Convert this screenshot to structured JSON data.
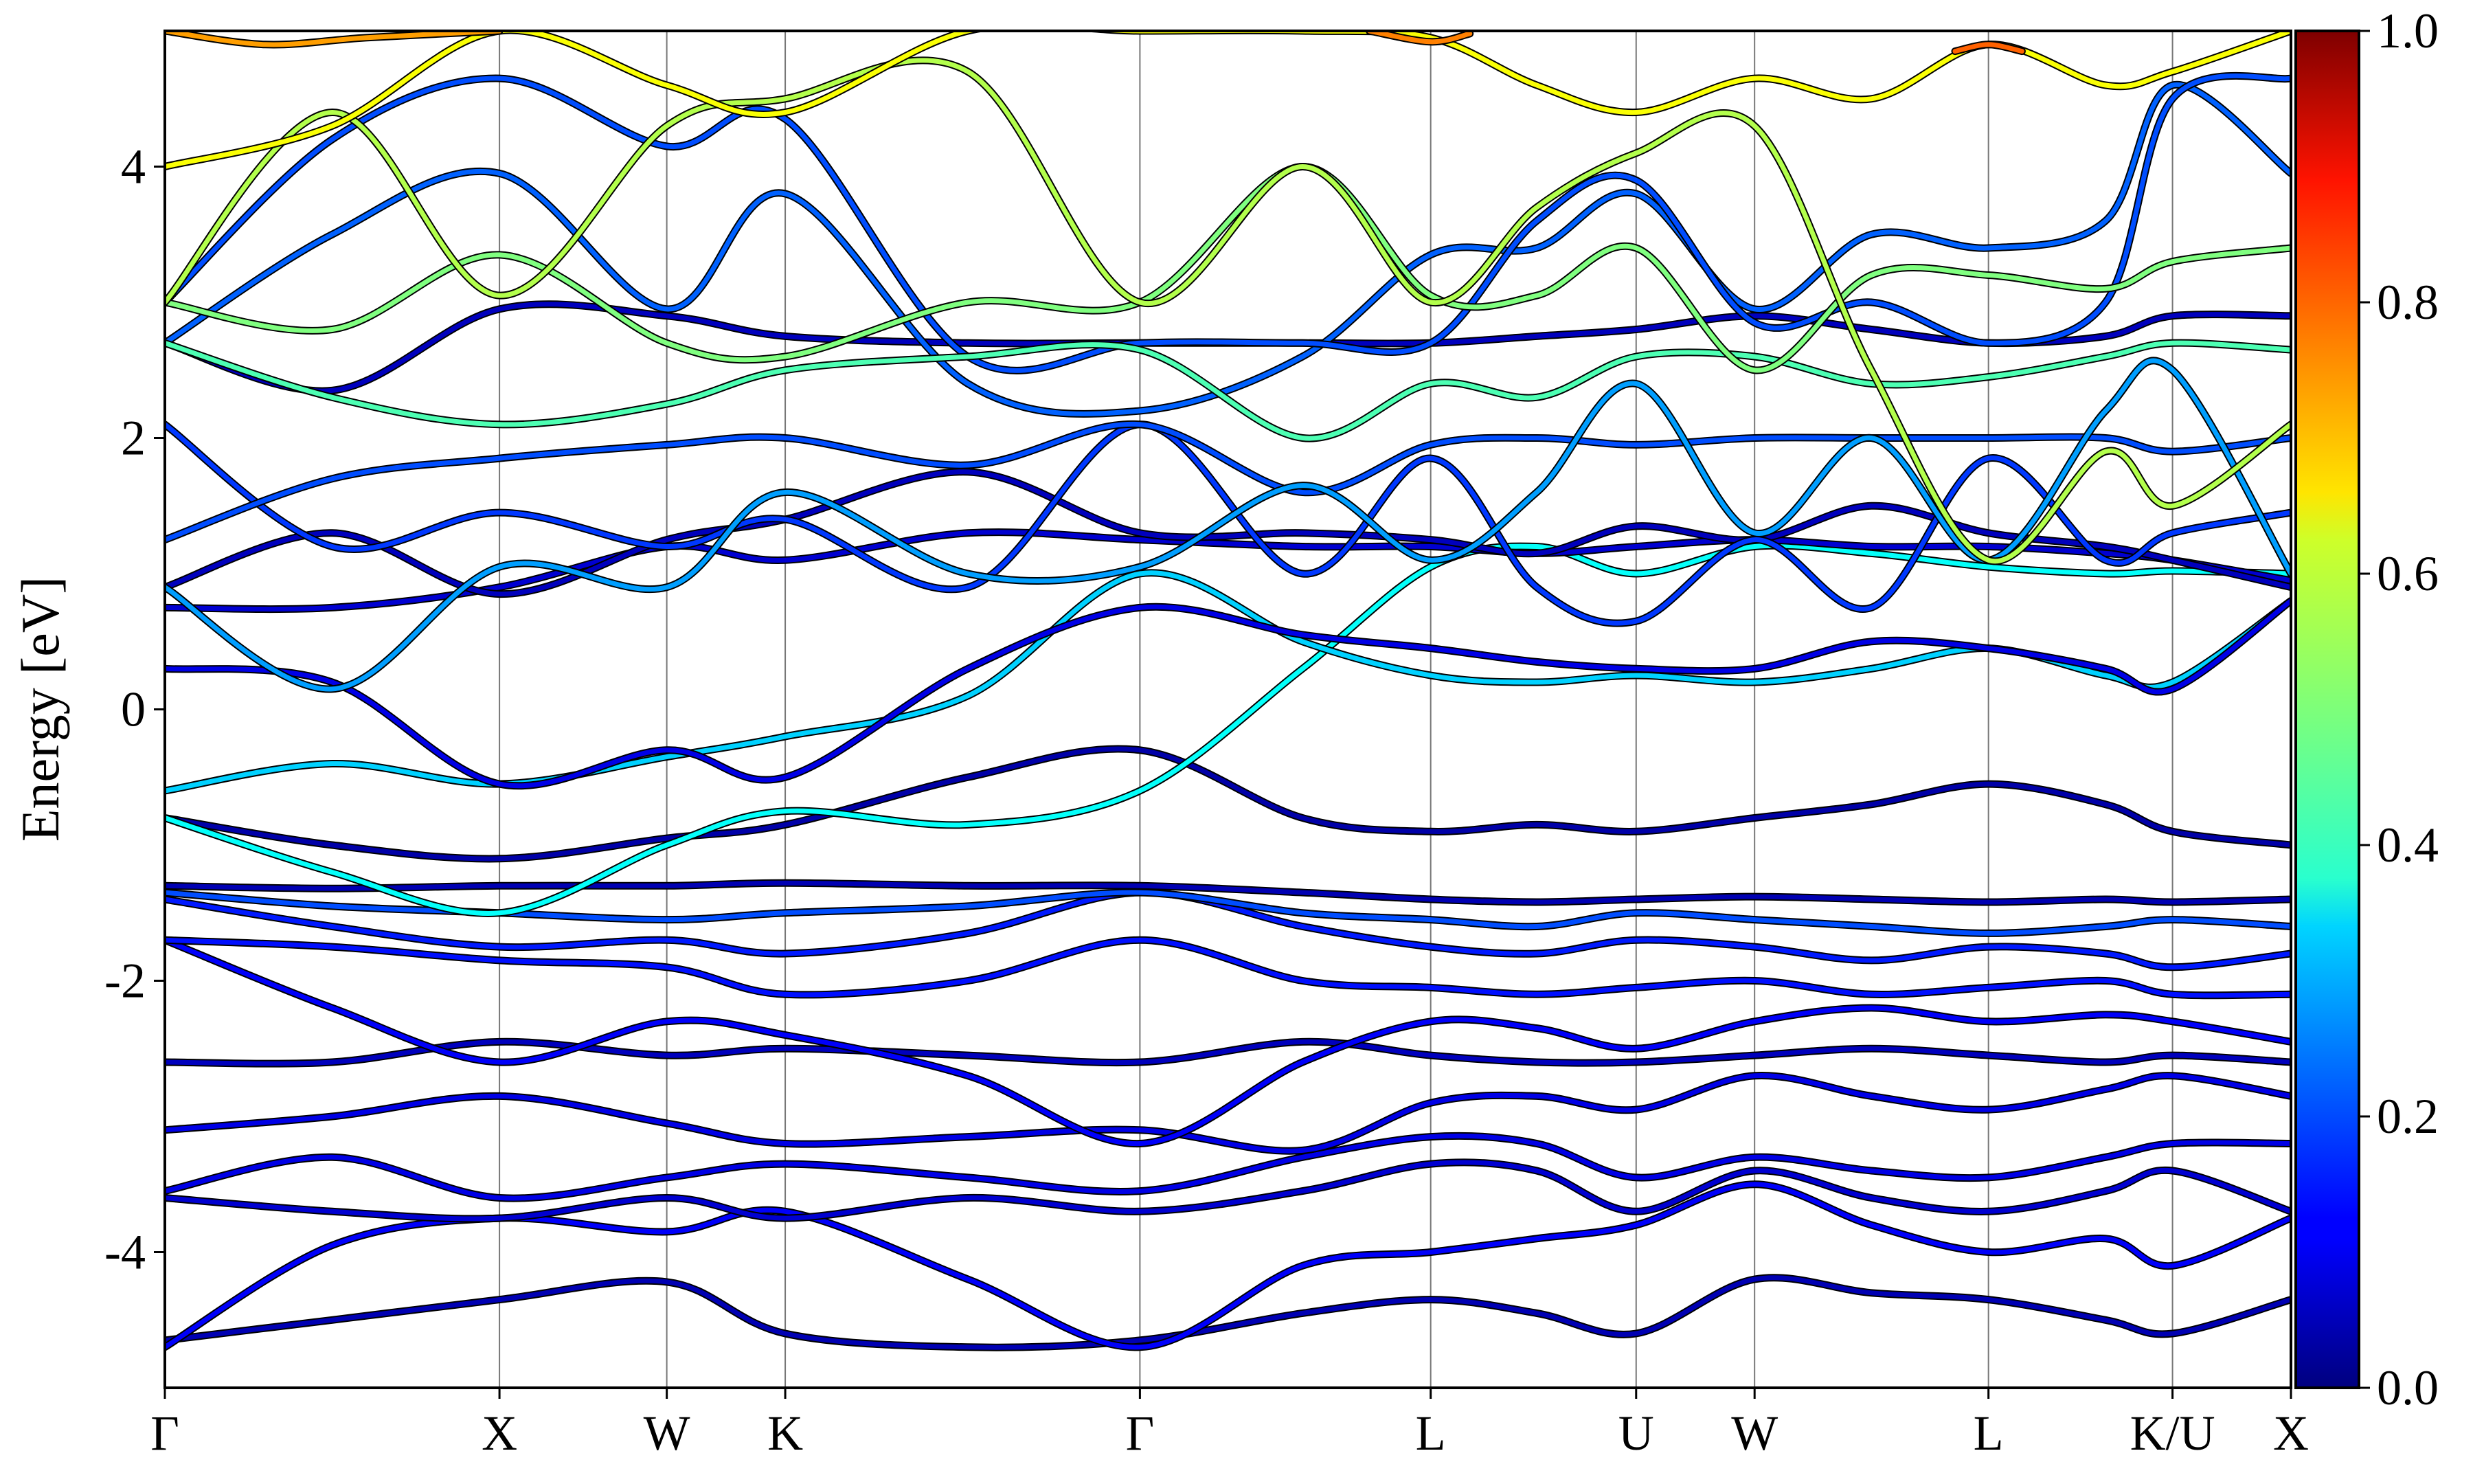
{
  "chart_data": {
    "type": "line",
    "title": "",
    "xlabel": "",
    "ylabel": "Energy [eV]",
    "ylim": [
      -5,
      5
    ],
    "y_ticks": [
      -4,
      -2,
      0,
      2,
      4
    ],
    "y_tick_labels": [
      "-4",
      "-2",
      "0",
      "2",
      "4"
    ],
    "x_ticks": [
      0,
      1.0,
      1.5,
      1.854,
      2.914,
      3.783,
      4.397,
      4.751,
      5.45,
      6.0,
      6.354
    ],
    "x_tick_labels": [
      "Γ",
      "X",
      "W",
      "K",
      "Γ",
      "L",
      "U",
      "W",
      "L",
      "K/U",
      "X"
    ],
    "xlim": [
      0,
      6.354
    ],
    "grid": "vertical lines at high-symmetry points",
    "colormap": "jet",
    "colorbar": {
      "range": [
        0.0,
        1.0
      ],
      "tick_values": [
        0.0,
        0.2,
        0.4,
        0.6,
        0.8,
        1.0
      ],
      "tick_labels": [
        "0.0",
        "0.2",
        "0.4",
        "0.6",
        "0.8",
        "1.0"
      ]
    },
    "series": [
      {
        "color_value": 0.05,
        "x": [
          0,
          0.5,
          1.0,
          1.5,
          1.854,
          2.4,
          2.914,
          3.4,
          3.783,
          4.1,
          4.397,
          4.751,
          5.1,
          5.45,
          5.8,
          6.0,
          6.354
        ],
        "y": [
          -4.65,
          -4.5,
          -4.35,
          -4.22,
          -4.6,
          -4.7,
          -4.65,
          -4.45,
          -4.35,
          -4.45,
          -4.6,
          -4.2,
          -4.3,
          -4.35,
          -4.5,
          -4.6,
          -4.35
        ]
      },
      {
        "color_value": 0.12,
        "x": [
          0,
          0.5,
          1.0,
          1.5,
          1.854,
          2.4,
          2.914,
          3.4,
          3.783,
          4.1,
          4.397,
          4.751,
          5.1,
          5.45,
          5.8,
          6.0,
          6.354
        ],
        "y": [
          -4.7,
          -3.95,
          -3.75,
          -3.85,
          -3.7,
          -4.2,
          -4.7,
          -4.1,
          -4.0,
          -3.9,
          -3.8,
          -3.5,
          -3.8,
          -4.0,
          -3.9,
          -4.1,
          -3.75
        ]
      },
      {
        "color_value": 0.08,
        "x": [
          0,
          0.5,
          1.0,
          1.5,
          1.854,
          2.4,
          2.914,
          3.4,
          3.783,
          4.1,
          4.397,
          4.751,
          5.1,
          5.45,
          5.8,
          6.0,
          6.354
        ],
        "y": [
          -3.6,
          -3.7,
          -3.75,
          -3.6,
          -3.75,
          -3.6,
          -3.7,
          -3.55,
          -3.35,
          -3.4,
          -3.7,
          -3.4,
          -3.6,
          -3.7,
          -3.55,
          -3.4,
          -3.7
        ]
      },
      {
        "color_value": 0.1,
        "x": [
          0,
          0.5,
          1.0,
          1.5,
          1.854,
          2.4,
          2.914,
          3.4,
          3.783,
          4.1,
          4.397,
          4.751,
          5.1,
          5.45,
          5.8,
          6.0,
          6.354
        ],
        "y": [
          -3.55,
          -3.3,
          -3.6,
          -3.45,
          -3.35,
          -3.45,
          -3.55,
          -3.3,
          -3.15,
          -3.2,
          -3.45,
          -3.3,
          -3.4,
          -3.45,
          -3.3,
          -3.2,
          -3.2
        ]
      },
      {
        "color_value": 0.1,
        "x": [
          0,
          0.5,
          1.0,
          1.5,
          1.854,
          2.4,
          2.914,
          3.4,
          3.783,
          4.1,
          4.397,
          4.751,
          5.1,
          5.45,
          5.8,
          6.0,
          6.354
        ],
        "y": [
          -3.1,
          -3.0,
          -2.85,
          -3.05,
          -3.2,
          -3.15,
          -3.1,
          -3.25,
          -2.9,
          -2.85,
          -2.95,
          -2.7,
          -2.85,
          -2.95,
          -2.8,
          -2.7,
          -2.85
        ]
      },
      {
        "color_value": 0.06,
        "x": [
          0,
          0.5,
          1.0,
          1.5,
          1.854,
          2.4,
          2.914,
          3.4,
          3.783,
          4.1,
          4.397,
          4.751,
          5.1,
          5.45,
          5.8,
          6.0,
          6.354
        ],
        "y": [
          -2.6,
          -2.6,
          -2.45,
          -2.55,
          -2.5,
          -2.55,
          -2.6,
          -2.45,
          -2.55,
          -2.6,
          -2.6,
          -2.55,
          -2.5,
          -2.55,
          -2.6,
          -2.55,
          -2.6
        ]
      },
      {
        "color_value": 0.12,
        "x": [
          0,
          0.5,
          1.0,
          1.5,
          1.854,
          2.4,
          2.914,
          3.4,
          3.783,
          4.1,
          4.397,
          4.751,
          5.1,
          5.45,
          5.8,
          6.0,
          6.354
        ],
        "y": [
          -1.7,
          -2.2,
          -2.6,
          -2.3,
          -2.4,
          -2.7,
          -3.2,
          -2.6,
          -2.3,
          -2.35,
          -2.5,
          -2.3,
          -2.2,
          -2.3,
          -2.25,
          -2.3,
          -2.45
        ]
      },
      {
        "color_value": 0.14,
        "x": [
          0,
          0.5,
          1.0,
          1.5,
          1.854,
          2.4,
          2.914,
          3.4,
          3.783,
          4.1,
          4.397,
          4.751,
          5.1,
          5.45,
          5.8,
          6.0,
          6.354
        ],
        "y": [
          -1.7,
          -1.75,
          -1.85,
          -1.9,
          -2.1,
          -2.0,
          -1.7,
          -2.0,
          -2.05,
          -2.1,
          -2.05,
          -2.0,
          -2.1,
          -2.05,
          -2.0,
          -2.1,
          -2.1
        ]
      },
      {
        "color_value": 0.15,
        "x": [
          0,
          0.5,
          1.0,
          1.5,
          1.854,
          2.4,
          2.914,
          3.4,
          3.783,
          4.1,
          4.397,
          4.751,
          5.1,
          5.45,
          5.8,
          6.0,
          6.354
        ],
        "y": [
          -1.4,
          -1.6,
          -1.75,
          -1.7,
          -1.8,
          -1.65,
          -1.35,
          -1.6,
          -1.75,
          -1.8,
          -1.7,
          -1.75,
          -1.85,
          -1.75,
          -1.8,
          -1.9,
          -1.8
        ]
      },
      {
        "color_value": 0.05,
        "x": [
          0,
          0.5,
          1.0,
          1.5,
          1.854,
          2.4,
          2.914,
          3.4,
          3.783,
          4.1,
          4.397,
          4.751,
          5.1,
          5.45,
          5.8,
          6.0,
          6.354
        ],
        "y": [
          -1.3,
          -1.32,
          -1.3,
          -1.3,
          -1.28,
          -1.3,
          -1.3,
          -1.35,
          -1.4,
          -1.42,
          -1.4,
          -1.38,
          -1.4,
          -1.42,
          -1.4,
          -1.42,
          -1.4
        ]
      },
      {
        "color_value": 0.2,
        "x": [
          0,
          0.5,
          1.0,
          1.5,
          1.854,
          2.4,
          2.914,
          3.4,
          3.783,
          4.1,
          4.397,
          4.751,
          5.1,
          5.45,
          5.8,
          6.0,
          6.354
        ],
        "y": [
          -1.35,
          -1.45,
          -1.5,
          -1.55,
          -1.5,
          -1.45,
          -1.35,
          -1.5,
          -1.55,
          -1.6,
          -1.5,
          -1.55,
          -1.6,
          -1.65,
          -1.6,
          -1.55,
          -1.6
        ]
      },
      {
        "color_value": 0.04,
        "x": [
          0,
          0.5,
          1.0,
          1.5,
          1.854,
          2.4,
          2.914,
          3.4,
          3.783,
          4.1,
          4.397,
          4.751,
          5.1,
          5.45,
          5.8,
          6.0,
          6.354
        ],
        "y": [
          -0.8,
          -1.0,
          -1.1,
          -0.95,
          -0.85,
          -0.5,
          -0.3,
          -0.8,
          -0.9,
          -0.85,
          -0.9,
          -0.8,
          -0.7,
          -0.55,
          -0.7,
          -0.9,
          -1.0
        ]
      },
      {
        "color_value": 0.38,
        "x": [
          0,
          0.5,
          1.0,
          1.5,
          1.854,
          2.4,
          2.914,
          3.4,
          3.783,
          4.1,
          4.397,
          4.751,
          5.1,
          5.45,
          5.8,
          6.0,
          6.354
        ],
        "y": [
          -0.8,
          -1.2,
          -1.5,
          -1.0,
          -0.75,
          -0.85,
          -0.6,
          0.3,
          1.05,
          1.2,
          1.0,
          1.2,
          1.15,
          1.05,
          1.0,
          1.02,
          1.0
        ]
      },
      {
        "color_value": 0.33,
        "x": [
          0,
          0.5,
          1.0,
          1.5,
          1.854,
          2.4,
          2.914,
          3.4,
          3.783,
          4.1,
          4.397,
          4.751,
          5.1,
          5.45,
          5.8,
          6.0,
          6.354
        ],
        "y": [
          -0.6,
          -0.4,
          -0.55,
          -0.35,
          -0.2,
          0.1,
          1.0,
          0.5,
          0.25,
          0.2,
          0.25,
          0.2,
          0.3,
          0.45,
          0.25,
          0.2,
          0.8
        ]
      },
      {
        "color_value": 0.1,
        "x": [
          0,
          0.5,
          1.0,
          1.5,
          1.854,
          2.4,
          2.914,
          3.4,
          3.783,
          4.1,
          4.397,
          4.751,
          5.1,
          5.45,
          5.8,
          6.0,
          6.354
        ],
        "y": [
          0.3,
          0.2,
          -0.55,
          -0.3,
          -0.5,
          0.3,
          0.75,
          0.55,
          0.45,
          0.35,
          0.3,
          0.3,
          0.5,
          0.45,
          0.3,
          0.15,
          0.8
        ]
      },
      {
        "color_value": 0.08,
        "x": [
          0,
          0.5,
          1.0,
          1.5,
          1.854,
          2.4,
          2.914,
          3.4,
          3.783,
          4.1,
          4.397,
          4.751,
          5.1,
          5.45,
          5.8,
          6.0,
          6.354
        ],
        "y": [
          0.75,
          0.75,
          0.9,
          1.2,
          1.1,
          1.3,
          1.25,
          1.2,
          1.2,
          1.15,
          1.2,
          1.25,
          1.2,
          1.2,
          1.15,
          1.1,
          0.95
        ]
      },
      {
        "color_value": 0.06,
        "x": [
          0,
          0.5,
          1.0,
          1.5,
          1.854,
          2.4,
          2.914,
          3.4,
          3.783,
          4.1,
          4.397,
          4.751,
          5.1,
          5.45,
          5.8,
          6.0,
          6.354
        ],
        "y": [
          0.9,
          1.3,
          0.85,
          1.25,
          1.4,
          1.75,
          1.3,
          1.3,
          1.25,
          1.15,
          1.35,
          1.25,
          1.5,
          1.3,
          1.2,
          1.1,
          0.9
        ]
      },
      {
        "color_value": 0.18,
        "x": [
          0,
          0.5,
          1.0,
          1.5,
          1.854,
          2.4,
          2.914,
          3.4,
          3.783,
          4.1,
          4.397,
          4.751,
          5.1,
          5.45,
          5.8,
          6.0,
          6.354
        ],
        "y": [
          2.1,
          1.2,
          1.45,
          1.2,
          1.4,
          0.9,
          2.1,
          1.0,
          1.85,
          0.9,
          0.65,
          1.25,
          0.75,
          1.85,
          1.1,
          1.3,
          1.45
        ]
      },
      {
        "color_value": 0.2,
        "x": [
          0,
          0.5,
          1.0,
          1.5,
          1.854,
          2.4,
          2.914,
          3.4,
          3.783,
          4.1,
          4.397,
          4.751,
          5.1,
          5.45,
          5.8,
          6.0,
          6.354
        ],
        "y": [
          1.25,
          1.7,
          1.85,
          1.95,
          2.0,
          1.8,
          2.1,
          1.6,
          1.95,
          2.0,
          1.95,
          2.0,
          2.0,
          2.0,
          2.0,
          1.9,
          2.0
        ]
      },
      {
        "color_value": 0.28,
        "x": [
          0,
          0.5,
          1.0,
          1.5,
          1.854,
          2.4,
          2.914,
          3.4,
          3.783,
          4.1,
          4.397,
          4.751,
          5.1,
          5.45,
          5.8,
          6.0,
          6.354
        ],
        "y": [
          0.9,
          0.15,
          1.05,
          0.9,
          1.6,
          1.0,
          1.05,
          1.65,
          1.1,
          1.6,
          2.4,
          1.3,
          2.0,
          1.1,
          2.2,
          2.5,
          1.0
        ]
      },
      {
        "color_value": 0.06,
        "x": [
          0,
          0.5,
          1.0,
          1.5,
          1.854,
          2.4,
          2.914,
          3.4,
          3.783,
          4.1,
          4.397,
          4.751,
          5.1,
          5.45,
          5.8,
          6.0,
          6.354
        ],
        "y": [
          2.7,
          2.35,
          2.95,
          2.9,
          2.75,
          2.7,
          2.7,
          2.7,
          2.7,
          2.75,
          2.8,
          2.9,
          2.8,
          2.7,
          2.75,
          2.9,
          2.9
        ]
      },
      {
        "color_value": 0.22,
        "x": [
          0,
          0.5,
          1.0,
          1.5,
          1.854,
          2.4,
          2.914,
          3.4,
          3.783,
          4.1,
          4.397,
          4.751,
          5.1,
          5.45,
          5.8,
          6.0,
          6.354
        ],
        "y": [
          2.7,
          3.5,
          3.95,
          2.95,
          3.8,
          2.4,
          2.2,
          2.6,
          3.35,
          3.4,
          3.8,
          2.95,
          3.5,
          3.4,
          3.6,
          4.6,
          3.95
        ]
      },
      {
        "color_value": 0.2,
        "x": [
          0,
          0.5,
          1.0,
          1.5,
          1.854,
          2.4,
          2.914,
          3.4,
          3.783,
          4.1,
          4.397,
          4.751,
          5.1,
          5.45,
          5.8,
          6.0,
          6.354
        ],
        "y": [
          3.0,
          4.2,
          4.65,
          4.15,
          4.35,
          2.6,
          2.7,
          2.7,
          2.7,
          3.6,
          3.9,
          2.85,
          3.0,
          2.7,
          3.0,
          4.5,
          4.65
        ]
      },
      {
        "color_value": 0.45,
        "x": [
          0,
          0.5,
          1.0,
          1.5,
          1.854,
          2.4,
          2.914,
          3.4,
          3.783,
          4.1,
          4.397,
          4.751,
          5.1,
          5.45,
          5.8,
          6.0,
          6.354
        ],
        "y": [
          2.7,
          2.3,
          2.1,
          2.25,
          2.5,
          2.6,
          2.65,
          2.0,
          2.4,
          2.3,
          2.6,
          2.6,
          2.4,
          2.45,
          2.6,
          2.7,
          2.65
        ]
      },
      {
        "color_value": 0.5,
        "x": [
          0,
          0.5,
          1.0,
          1.5,
          1.854,
          2.4,
          2.914,
          3.4,
          3.783,
          4.1,
          4.397,
          4.751,
          5.1,
          5.45,
          5.8,
          6.0,
          6.354
        ],
        "y": [
          3.0,
          2.8,
          3.35,
          2.7,
          2.6,
          3.0,
          3.0,
          4.0,
          3.05,
          3.05,
          3.4,
          2.5,
          3.2,
          3.2,
          3.1,
          3.3,
          3.4
        ]
      },
      {
        "color_value": 0.55,
        "x": [
          0,
          0.5,
          1.0,
          1.5,
          1.854,
          2.4,
          2.914,
          3.4,
          3.783,
          4.1,
          4.397,
          4.751,
          5.1,
          5.45,
          5.8,
          6.0,
          6.354
        ],
        "y": [
          3.0,
          4.4,
          3.05,
          4.3,
          4.5,
          4.7,
          3.0,
          4.0,
          3.0,
          3.7,
          4.1,
          4.3,
          2.5,
          1.1,
          1.9,
          1.5,
          2.1
        ]
      },
      {
        "color_value": 0.62,
        "x": [
          0,
          0.5,
          1.0,
          1.5,
          1.854,
          2.4,
          2.914,
          3.4,
          3.783,
          4.1,
          4.397,
          4.751,
          5.1,
          5.45,
          5.8,
          6.0,
          6.354
        ],
        "y": [
          4.0,
          4.3,
          5.0,
          4.6,
          4.4,
          5.0,
          5.0,
          5.0,
          4.95,
          4.6,
          4.4,
          4.65,
          4.5,
          4.9,
          4.6,
          4.7,
          5.0
        ]
      },
      {
        "color_value": 0.72,
        "x": [
          0,
          0.3,
          0.6,
          1.0
        ],
        "y": [
          5.0,
          4.9,
          4.95,
          5.0
        ]
      },
      {
        "color_value": 0.75,
        "x": [
          3.6,
          3.783,
          3.9
        ],
        "y": [
          5.0,
          4.92,
          4.98
        ]
      },
      {
        "color_value": 0.78,
        "x": [
          5.35,
          5.45,
          5.55
        ],
        "y": [
          4.85,
          4.9,
          4.85
        ]
      }
    ]
  }
}
